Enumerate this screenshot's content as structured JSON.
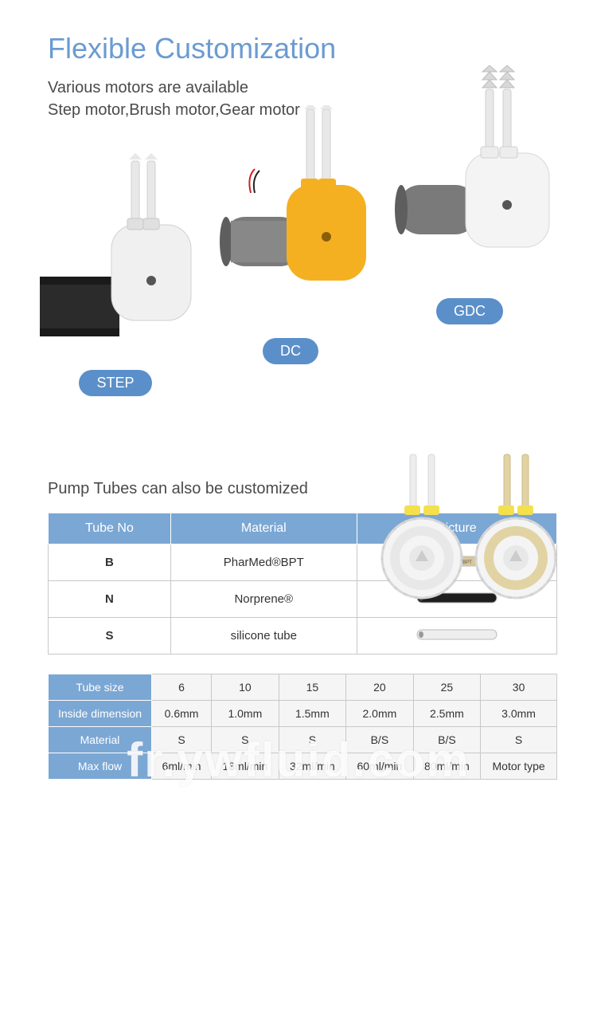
{
  "header": {
    "title": "Flexible Customization",
    "subtitle_line1": "Various motors are available",
    "subtitle_line2": "Step motor,Brush motor,Gear motor"
  },
  "pumps": {
    "step": {
      "label": "STEP",
      "body_color": "#f0f0f0",
      "motor_color": "#2b2b2b"
    },
    "dc": {
      "label": "DC",
      "body_color": "#f5b021",
      "motor_color": "#6e6e6e"
    },
    "gdc": {
      "label": "GDC",
      "body_color": "#f4f4f4",
      "motor_color": "#6e6e6e"
    }
  },
  "tubes": {
    "section_title": "Pump Tubes can also be customized",
    "table1_headers": {
      "c1": "Tube No",
      "c2": "Material",
      "c3": "Picture"
    },
    "rows": [
      {
        "no": "B",
        "material": "PharMed®BPT",
        "tube_color": "#d8c79a",
        "tube_has_text": true
      },
      {
        "no": "N",
        "material": "Norprene®",
        "tube_color": "#1e1e1e",
        "tube_has_text": false
      },
      {
        "no": "S",
        "material": "silicone tube",
        "tube_color": "#eeeeee",
        "tube_has_text": false
      }
    ]
  },
  "specs": {
    "row_headers": {
      "r1": "Tube size",
      "r2": "Inside dimension",
      "r3": "Material",
      "r4": "Max flow"
    },
    "cols": [
      {
        "size": "6",
        "id": "0.6mm",
        "mat": "S",
        "flow": "6ml/min"
      },
      {
        "size": "10",
        "id": "1.0mm",
        "mat": "S",
        "flow": "18ml/min"
      },
      {
        "size": "15",
        "id": "1.5mm",
        "mat": "S",
        "flow": "32ml/min"
      },
      {
        "size": "20",
        "id": "2.0mm",
        "mat": "B/S",
        "flow": "60ml/min"
      },
      {
        "size": "25",
        "id": "2.5mm",
        "mat": "B/S",
        "flow": "80ml/min"
      },
      {
        "size": "30",
        "id": "3.0mm",
        "mat": "S",
        "flow": "Motor type"
      }
    ]
  },
  "colors": {
    "accent": "#6b9bd1",
    "badge_bg": "#5b8fc9",
    "table_header_bg": "#7ba7d4",
    "border": "#c8c8c8",
    "cell_bg": "#f5f5f5"
  },
  "watermark": "fr.ywfluid.com"
}
